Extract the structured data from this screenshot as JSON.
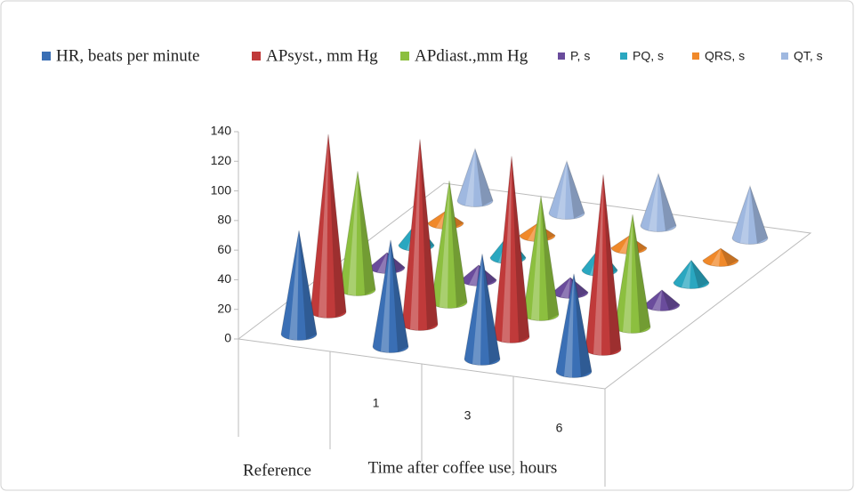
{
  "chart_data": {
    "type": "cone3d",
    "categories": [
      "Reference",
      "1",
      "3",
      "6"
    ],
    "xlabel": "Time after coffee use, hours",
    "series": [
      {
        "name": "HR, beats per minute",
        "color": "#3a6fb5",
        "values": [
          70,
          72,
          71,
          66
        ]
      },
      {
        "name": "APsyst., mm Hg",
        "color": "#c03a3a",
        "values": [
          120,
          125,
          122,
          118
        ]
      },
      {
        "name": "APdiast.,mm Hg",
        "color": "#8cbf3f",
        "values": [
          80,
          82,
          80,
          76
        ]
      },
      {
        "name": "P, s",
        "color": "#6a4c9c",
        "values": [
          10,
          10,
          10,
          10
        ]
      },
      {
        "name": "PQ, s",
        "color": "#2aa7c0",
        "values": [
          15,
          15,
          15,
          15
        ]
      },
      {
        "name": "QRS, s",
        "color": "#f0892a",
        "values": [
          8,
          8,
          8,
          8
        ]
      },
      {
        "name": "QT, s",
        "color": "#9fb8e0",
        "values": [
          35,
          35,
          35,
          35
        ]
      }
    ],
    "ylim": [
      0,
      140
    ],
    "yticks": [
      0,
      20,
      40,
      60,
      80,
      100,
      120,
      140
    ]
  }
}
